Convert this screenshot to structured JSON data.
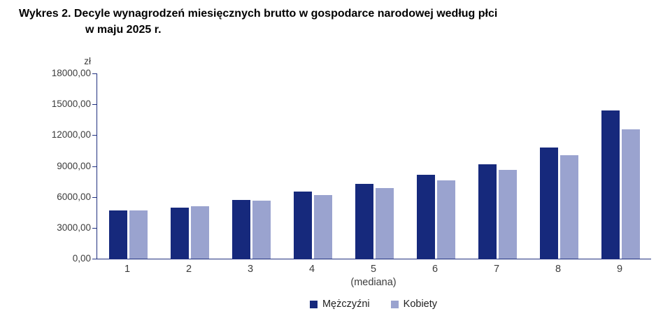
{
  "title": {
    "line1": "Wykres 2. Decyle wynagrodzeń miesięcznych brutto w gospodarce narodowej według płci",
    "line2": "w maju 2025 r."
  },
  "chart_data": {
    "type": "bar",
    "unit_label": "zł",
    "categories": [
      "1",
      "2",
      "3",
      "4",
      "5",
      "6",
      "7",
      "8",
      "9"
    ],
    "median_category_index": 4,
    "median_sublabel": "(mediana)",
    "series": [
      {
        "name": "Mężczyźni",
        "color": "#16297c",
        "values": [
          4666,
          4950,
          5700,
          6500,
          7250,
          8150,
          9200,
          10800,
          14400
        ]
      },
      {
        "name": "Kobiety",
        "color": "#9aa3cf",
        "values": [
          4666,
          5100,
          5650,
          6200,
          6870,
          7640,
          8650,
          10050,
          12600
        ]
      }
    ],
    "ylim": [
      0,
      18000
    ],
    "ytick_step": 3000,
    "ytick_labels": [
      "0,00",
      "3000,00",
      "6000,00",
      "9000,00",
      "12000,00",
      "15000,00",
      "18000,00"
    ],
    "grid": false,
    "legend_position": "bottom",
    "axis_color": "#20307f"
  }
}
